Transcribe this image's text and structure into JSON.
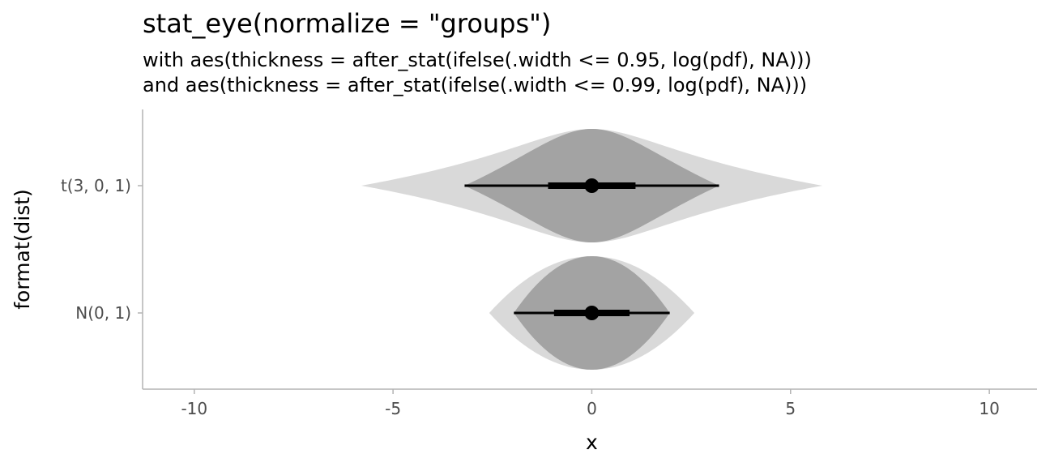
{
  "chart_data": {
    "type": "eye",
    "title": "stat_eye(normalize = \"groups\")",
    "subtitle_lines": [
      "with aes(thickness = after_stat(ifelse(.width <= 0.95, log(pdf), NA)))",
      "and aes(thickness = after_stat(ifelse(.width <= 0.99, log(pdf), NA)))"
    ],
    "xlabel": "x",
    "ylabel": "format(dist)",
    "xlim": [
      -11.3,
      11.2
    ],
    "x_ticks": [
      -10,
      -5,
      0,
      5,
      10
    ],
    "x_tick_labels": [
      "-10",
      "-5",
      "0",
      "5",
      "10"
    ],
    "categories": [
      "t(3, 0, 1)",
      "N(0, 1)"
    ],
    "colors": {
      "outer_slab": "#d9d9d9",
      "inner_slab": "#a3a3a3",
      "interval": "#000000",
      "axis": "#b3b3b3",
      "tick_text": "#4d4d4d"
    },
    "series": [
      {
        "category": "t(3, 0, 1)",
        "point": 0,
        "interval_66": [
          -1.1,
          1.1
        ],
        "interval_95": [
          -3.2,
          3.2
        ],
        "slab_99_range": [
          -5.8,
          5.8
        ],
        "slab_95_range": [
          -3.2,
          3.2
        ]
      },
      {
        "category": "N(0, 1)",
        "point": 0,
        "interval_66": [
          -0.95,
          0.95
        ],
        "interval_95": [
          -1.96,
          1.96
        ],
        "slab_99_range": [
          -2.58,
          2.58
        ],
        "slab_95_range": [
          -1.96,
          1.96
        ]
      }
    ]
  }
}
